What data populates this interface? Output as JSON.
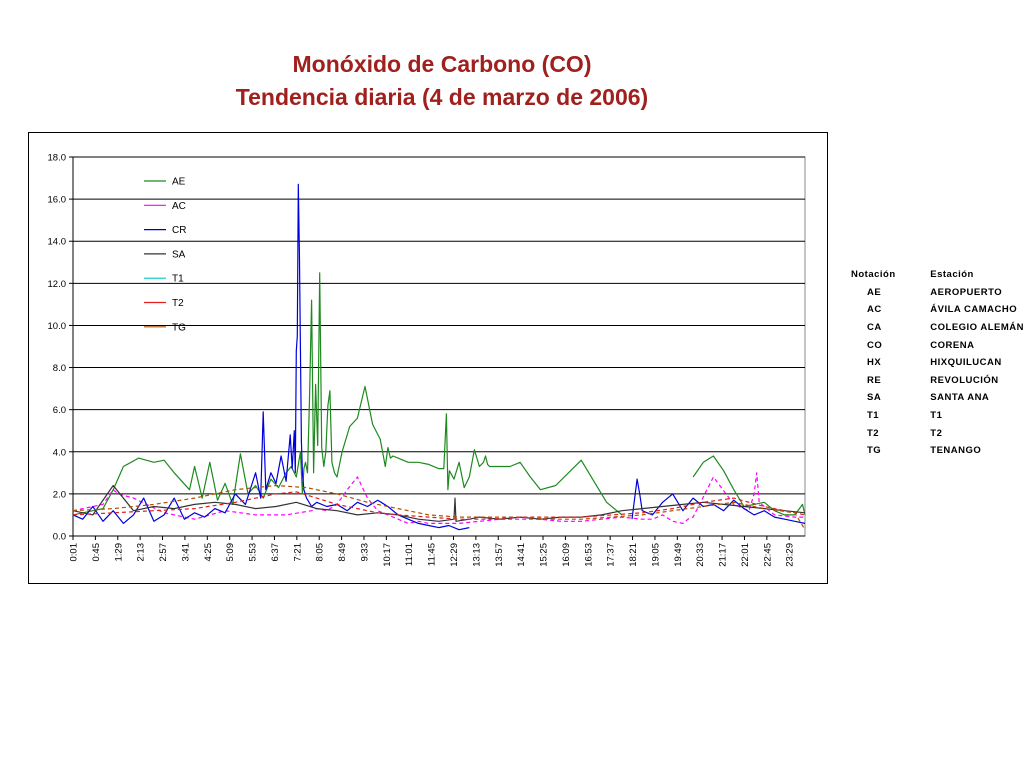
{
  "title": {
    "line1": "Monóxido de Carbono (CO)",
    "line2": "Tendencia diaria (4 de marzo de 2006)"
  },
  "colors": {
    "title": "#a0201e",
    "AE": "#1e8a1e",
    "AC": "#ff00ff",
    "CR": "#0000dd",
    "SA": "#333333",
    "T1": "#00c8c8",
    "T2": "#e02020",
    "TG": "#b05000"
  },
  "stations_table": {
    "header": {
      "code": "Notación",
      "station": "Estación"
    },
    "rows": [
      {
        "code": "AE",
        "station": "AEROPUERTO"
      },
      {
        "code": "AC",
        "station": "ÁVILA CAMACHO"
      },
      {
        "code": "CA",
        "station": "COLEGIO ALEMÁN"
      },
      {
        "code": "CO",
        "station": "CORENA"
      },
      {
        "code": "HX",
        "station": "HIXQUILUCAN"
      },
      {
        "code": "RE",
        "station": "REVOLUCIÓN"
      },
      {
        "code": "SA",
        "station": "SANTA ANA"
      },
      {
        "code": "T1",
        "station": "T1"
      },
      {
        "code": "T2",
        "station": "T2"
      },
      {
        "code": "TG",
        "station": "TENANGO"
      }
    ]
  },
  "chart_data": {
    "type": "line",
    "title": "Monóxido de Carbono (CO) Tendencia diaria (4 de marzo de 2006)",
    "ylim": [
      0,
      18
    ],
    "yticks": [
      "0.0",
      "2.0",
      "4.0",
      "6.0",
      "8.0",
      "10.0",
      "12.0",
      "14.0",
      "16.0",
      "18.0"
    ],
    "xlim_minutes": [
      1,
      1440
    ],
    "xticks": [
      "0:01",
      "0:45",
      "1:29",
      "2:13",
      "2:57",
      "3:41",
      "4:25",
      "5:09",
      "5:53",
      "6:37",
      "7:21",
      "8:05",
      "8:49",
      "9:33",
      "10:17",
      "11:01",
      "11:45",
      "12:29",
      "13:13",
      "13:57",
      "14:41",
      "15:25",
      "16:09",
      "16:53",
      "17:37",
      "18:21",
      "19:05",
      "19:49",
      "20:33",
      "21:17",
      "22:01",
      "22:45",
      "23:29"
    ],
    "grid": "horizontal",
    "legend_position": "inside-top-left",
    "series": [
      {
        "name": "AE",
        "x_minutes": [
          1,
          40,
          60,
          80,
          100,
          130,
          160,
          180,
          200,
          230,
          240,
          255,
          270,
          285,
          300,
          315,
          330,
          345,
          360,
          375,
          390,
          405,
          420,
          430,
          440,
          448,
          452,
          455,
          458,
          462,
          466,
          470,
          474,
          478,
          482,
          486,
          490,
          494,
          498,
          502,
          506,
          510,
          515,
          520,
          530,
          545,
          560,
          575,
          590,
          605,
          615,
          620,
          625,
          630,
          640,
          650,
          660,
          680,
          700,
          720,
          730,
          735,
          738,
          741,
          750,
          760,
          770,
          780,
          790,
          800,
          808,
          812,
          816,
          820,
          830,
          860,
          880,
          900,
          920,
          950,
          1000,
          1050,
          1080,
          1100,
          1120,
          1140,
          1160,
          1180,
          1200,
          1220,
          1240,
          1260,
          1280,
          1300,
          1320,
          1340,
          1360,
          1380,
          1400,
          1420,
          1435,
          1440
        ],
        "y": [
          1.0,
          1.2,
          1.3,
          2.2,
          3.3,
          3.7,
          3.5,
          3.6,
          3.0,
          2.2,
          3.3,
          1.8,
          3.5,
          1.7,
          2.5,
          1.5,
          3.9,
          2.0,
          2.4,
          1.8,
          2.7,
          2.3,
          3.0,
          3.3,
          2.8,
          4.0,
          2.0,
          3.2,
          3.5,
          3.0,
          6.5,
          11.2,
          3.0,
          7.2,
          4.3,
          12.5,
          4.2,
          3.3,
          4.0,
          6.2,
          6.9,
          3.5,
          3.0,
          2.8,
          4.0,
          5.2,
          5.6,
          7.1,
          5.3,
          4.6,
          3.3,
          4.2,
          3.7,
          3.8,
          3.7,
          3.6,
          3.5,
          3.5,
          3.4,
          3.2,
          3.2,
          5.8,
          2.2,
          3.1,
          2.7,
          3.5,
          2.3,
          2.8,
          4.1,
          3.3,
          3.5,
          3.8,
          3.4,
          3.3,
          3.3,
          3.3,
          3.5,
          2.8,
          2.2,
          2.4,
          3.6,
          1.6,
          1.0,
          null,
          null,
          null,
          null,
          null,
          null,
          2.8,
          3.5,
          3.8,
          3.1,
          2.2,
          1.4,
          1.5,
          1.6,
          1.2,
          1.0,
          1.0,
          1.5,
          1.0
        ]
      },
      {
        "name": "AC",
        "x_minutes": [
          1,
          60,
          80,
          90,
          120,
          180,
          240,
          300,
          360,
          420,
          470,
          480,
          500,
          520,
          540,
          560,
          580,
          600,
          620,
          640,
          660,
          680,
          700,
          720,
          760,
          800,
          840,
          880,
          920,
          960,
          1000,
          1040,
          1080,
          1120,
          1140,
          1160,
          1180,
          1200,
          1210,
          1220,
          1260,
          1300,
          1330,
          1340,
          1345,
          1350,
          1380,
          1420,
          1440
        ],
        "y": [
          1.2,
          1.5,
          2.2,
          2.0,
          1.8,
          1.1,
          0.8,
          1.2,
          1.0,
          1.0,
          1.2,
          1.3,
          1.2,
          1.5,
          2.2,
          2.8,
          1.8,
          1.2,
          1.0,
          0.8,
          0.6,
          0.7,
          0.6,
          0.6,
          0.6,
          0.7,
          0.8,
          0.8,
          0.8,
          0.7,
          0.7,
          0.8,
          0.9,
          0.8,
          0.8,
          1.0,
          0.7,
          0.6,
          0.8,
          0.9,
          2.8,
          1.5,
          1.2,
          2.0,
          3.0,
          1.6,
          1.0,
          0.9,
          0.9
        ]
      },
      {
        "name": "CR",
        "x_minutes": [
          1,
          20,
          40,
          60,
          80,
          100,
          120,
          140,
          160,
          180,
          200,
          220,
          240,
          260,
          280,
          300,
          320,
          340,
          360,
          370,
          375,
          380,
          390,
          400,
          410,
          420,
          428,
          432,
          436,
          438,
          440,
          442,
          444,
          446,
          448,
          450,
          452,
          455,
          460,
          470,
          480,
          500,
          520,
          540,
          560,
          580,
          600,
          620,
          640,
          660,
          680,
          700,
          720,
          740,
          760,
          780,
          800,
          820,
          840,
          860,
          880,
          900,
          920,
          940,
          960,
          980,
          1000,
          1020,
          1040,
          1060,
          1080,
          1100,
          1110,
          1115,
          1120,
          1140,
          1160,
          1180,
          1200,
          1220,
          1240,
          1260,
          1280,
          1300,
          1320,
          1340,
          1360,
          1380,
          1400,
          1420,
          1440
        ],
        "y": [
          1.0,
          0.8,
          1.4,
          0.7,
          1.2,
          0.6,
          1.0,
          1.8,
          0.7,
          1.0,
          1.8,
          0.8,
          1.1,
          0.9,
          1.3,
          1.1,
          2.0,
          1.5,
          3.0,
          1.8,
          5.9,
          2.2,
          3.0,
          2.5,
          3.8,
          2.6,
          4.8,
          3.2,
          5.0,
          3.0,
          8.8,
          9.5,
          16.7,
          13.5,
          9.0,
          4.5,
          3.0,
          2.2,
          1.8,
          1.4,
          1.6,
          1.4,
          1.5,
          1.2,
          1.6,
          1.4,
          1.7,
          1.4,
          1.0,
          0.8,
          0.6,
          0.5,
          0.4,
          0.5,
          0.3,
          0.4,
          null,
          null,
          null,
          null,
          null,
          null,
          null,
          null,
          null,
          null,
          null,
          null,
          null,
          null,
          null,
          0.8,
          2.7,
          2.0,
          1.2,
          1.0,
          1.6,
          2.0,
          1.2,
          1.8,
          1.4,
          1.5,
          1.2,
          1.7,
          1.3,
          1.0,
          1.2,
          0.9,
          0.8,
          0.7,
          0.6
        ]
      },
      {
        "name": "SA",
        "x_minutes": [
          1,
          40,
          80,
          120,
          160,
          200,
          240,
          280,
          320,
          360,
          400,
          440,
          480,
          520,
          560,
          600,
          640,
          680,
          720,
          750,
          752,
          754,
          780,
          800,
          840,
          880,
          920,
          960,
          1000,
          1040,
          1080,
          1120,
          1160,
          1200,
          1240,
          1280,
          1320,
          1360,
          1400,
          1440
        ],
        "y": [
          1.2,
          1.0,
          2.4,
          1.2,
          1.4,
          1.3,
          1.5,
          1.6,
          1.5,
          1.3,
          1.4,
          1.6,
          1.3,
          1.2,
          1.0,
          1.1,
          1.0,
          0.8,
          0.7,
          0.8,
          1.8,
          0.7,
          0.8,
          0.9,
          0.8,
          0.9,
          0.8,
          0.9,
          0.9,
          1.0,
          1.2,
          1.3,
          1.4,
          1.5,
          1.6,
          1.5,
          1.4,
          1.3,
          1.2,
          1.1
        ]
      },
      {
        "name": "T2",
        "x_minutes": [
          1,
          80,
          160,
          240,
          320,
          400,
          440,
          480,
          520,
          560,
          600,
          640,
          700,
          760,
          820,
          880,
          940,
          1000,
          1060,
          1120,
          1180,
          1240,
          1300,
          1360,
          1420,
          1440
        ],
        "y": [
          1.0,
          1.1,
          1.2,
          1.3,
          1.6,
          2.0,
          2.1,
          1.8,
          1.5,
          1.3,
          1.1,
          1.0,
          0.9,
          0.8,
          0.8,
          0.9,
          0.9,
          0.9,
          1.0,
          1.1,
          1.3,
          1.6,
          1.8,
          1.4,
          1.1,
          1.0
        ]
      },
      {
        "name": "TG",
        "x_minutes": [
          1,
          80,
          160,
          240,
          320,
          400,
          460,
          520,
          580,
          640,
          700,
          760,
          820,
          880,
          940,
          1000,
          1060,
          1120,
          1180,
          1240,
          1300,
          1360,
          1420,
          1440
        ],
        "y": [
          1.2,
          1.3,
          1.5,
          1.8,
          2.2,
          2.4,
          2.3,
          2.0,
          1.6,
          1.3,
          1.0,
          0.9,
          0.9,
          0.9,
          0.8,
          0.8,
          0.9,
          1.0,
          1.2,
          1.4,
          1.6,
          1.3,
          1.1,
          0.3
        ]
      },
      {
        "name": "T1",
        "x_minutes": [],
        "y": []
      }
    ]
  }
}
